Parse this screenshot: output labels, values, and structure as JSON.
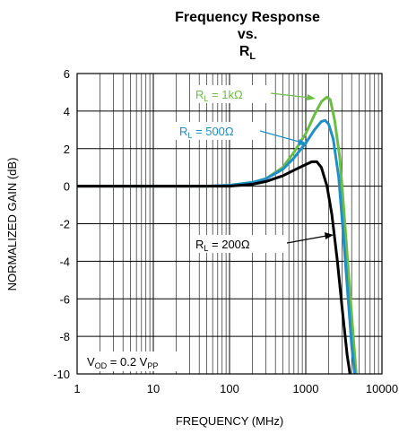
{
  "chart_data": {
    "type": "line",
    "title": {
      "line1": "Frequency Response",
      "line2": "vs.",
      "line3_main": "R",
      "line3_sub": "L"
    },
    "xlabel": "FREQUENCY (MHz)",
    "ylabel": "NORMALIZED GAIN (dB)",
    "x_scale": "log",
    "xlim": [
      1,
      10000
    ],
    "ylim": [
      -10,
      6
    ],
    "x_ticks": [
      1,
      10,
      100,
      1000,
      10000
    ],
    "x_tick_labels": [
      "1",
      "10",
      "100",
      "1000",
      "10000"
    ],
    "y_ticks": [
      6,
      4,
      2,
      0,
      -2,
      -4,
      -6,
      -8,
      -10
    ],
    "y_tick_labels": [
      "6",
      "4",
      "2",
      "0",
      "-2",
      "-4",
      "-6",
      "-8",
      "-10"
    ],
    "grid": true,
    "series": [
      {
        "name": "RL = 1kΩ",
        "color": "#6cbd45",
        "label_parts": [
          "R",
          "L",
          " = 1kΩ"
        ],
        "points": [
          [
            1,
            0
          ],
          [
            50,
            0
          ],
          [
            100,
            0.05
          ],
          [
            200,
            0.2
          ],
          [
            300,
            0.4
          ],
          [
            500,
            1.0
          ],
          [
            700,
            1.8
          ],
          [
            1000,
            2.8
          ],
          [
            1300,
            3.8
          ],
          [
            1600,
            4.5
          ],
          [
            1900,
            4.75
          ],
          [
            2100,
            4.6
          ],
          [
            2400,
            3.5
          ],
          [
            2800,
            1.5
          ],
          [
            3200,
            -1.5
          ],
          [
            3700,
            -5
          ],
          [
            4200,
            -8
          ],
          [
            4600,
            -10
          ]
        ]
      },
      {
        "name": "RL = 500Ω",
        "color": "#1f8fc7",
        "label_parts": [
          "R",
          "L",
          " = 500Ω"
        ],
        "points": [
          [
            1,
            0
          ],
          [
            50,
            0
          ],
          [
            100,
            0.05
          ],
          [
            200,
            0.2
          ],
          [
            300,
            0.4
          ],
          [
            500,
            0.9
          ],
          [
            700,
            1.5
          ],
          [
            1000,
            2.3
          ],
          [
            1300,
            3.0
          ],
          [
            1600,
            3.45
          ],
          [
            1800,
            3.5
          ],
          [
            2000,
            3.3
          ],
          [
            2300,
            2.5
          ],
          [
            2700,
            0.5
          ],
          [
            3100,
            -2.5
          ],
          [
            3600,
            -6
          ],
          [
            4000,
            -8.5
          ],
          [
            4400,
            -10
          ]
        ]
      },
      {
        "name": "RL = 200Ω",
        "color": "#000000",
        "label_parts": [
          "R",
          "L",
          " = 200Ω"
        ],
        "points": [
          [
            1,
            0
          ],
          [
            100,
            0
          ],
          [
            200,
            0.1
          ],
          [
            300,
            0.25
          ],
          [
            500,
            0.55
          ],
          [
            700,
            0.85
          ],
          [
            1000,
            1.15
          ],
          [
            1200,
            1.3
          ],
          [
            1400,
            1.3
          ],
          [
            1600,
            1.0
          ],
          [
            1900,
            0
          ],
          [
            2200,
            -1.5
          ],
          [
            2600,
            -4
          ],
          [
            3000,
            -6.5
          ],
          [
            3500,
            -9
          ],
          [
            3800,
            -10
          ]
        ]
      }
    ],
    "annotation": {
      "v": "V",
      "od": "OD",
      "mid": " = 0.2 V",
      "pp": "PP"
    }
  }
}
